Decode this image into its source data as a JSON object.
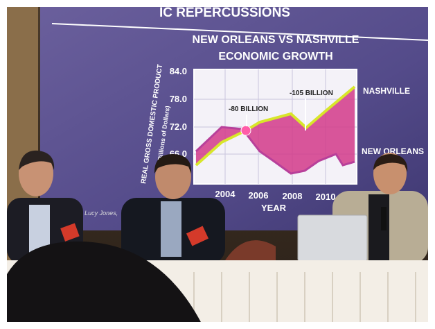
{
  "slide": {
    "heading": "IC REPERCUSSIONS",
    "chart_title": [
      "NEW ORLEANS VS NASHVILLE",
      "ECONOMIC GROWTH"
    ],
    "y_axis_label": "REAL GROSS DOMESTIC PRODUCT",
    "y_axis_sublabel": "(in Billions of Dollars)",
    "y_ticks": [
      "84.0",
      "78.0",
      "72.0",
      "66.0"
    ],
    "x_ticks": [
      "2004",
      "2006",
      "2008",
      "2010",
      "201"
    ],
    "x_axis_label": "YEAR",
    "annotations": [
      "-80 BILLION",
      "-105 BILLION"
    ],
    "series_labels": [
      "NASHVILLE",
      "NEW ORLEANS"
    ],
    "credit": "Dr. Lucy Jones,"
  }
}
